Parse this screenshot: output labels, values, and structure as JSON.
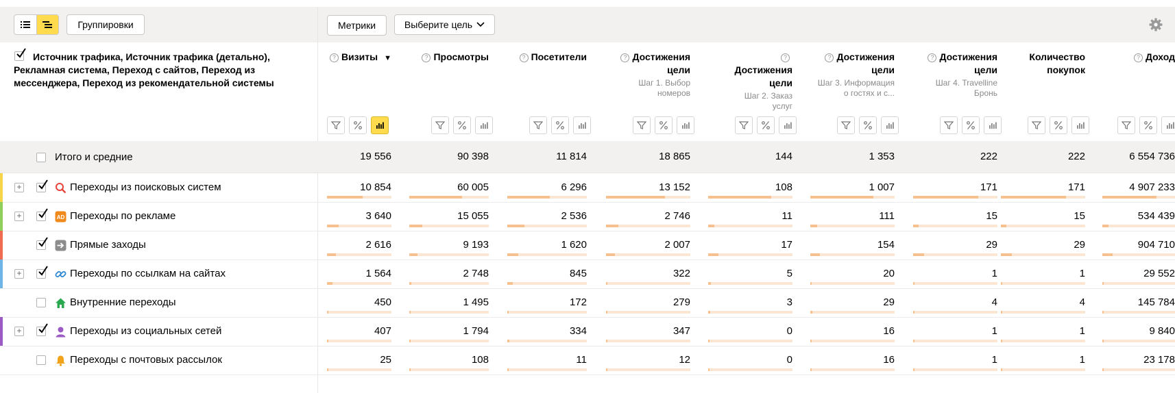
{
  "toolbar": {
    "groupings_label": "Группировки",
    "metrics_label": "Метрики",
    "goal_select_label": "Выберите цель"
  },
  "grouping_header": "Источник трафика, Источник трафика (детально), Рекламная система, Переход с сайтов, Переход из мессенджера, Переход из рекомендательной системы",
  "columns": [
    {
      "title": "Визиты",
      "sort_marker": "▼",
      "help": true,
      "note": ""
    },
    {
      "title": "Просмотры",
      "help": true,
      "note": ""
    },
    {
      "title": "Посетители",
      "help": true,
      "note": ""
    },
    {
      "title": "Достижения цели",
      "help": true,
      "note": "Шаг 1. Выбор номеров"
    },
    {
      "title": "Достижения цели",
      "help": true,
      "note": "Шаг 2. Заказ услуг"
    },
    {
      "title": "Достижения цели",
      "help": true,
      "note": "Шаг 3. Информация о гостях и с..."
    },
    {
      "title": "Достижения цели",
      "help": true,
      "note": "Шаг 4. Travelline Бронь"
    },
    {
      "title": "Количество покупок",
      "help": false,
      "note": ""
    },
    {
      "title": "Доход",
      "help": true,
      "note": ""
    }
  ],
  "totals": {
    "label": "Итого и средние",
    "values": [
      "19 556",
      "90 398",
      "11 814",
      "18 865",
      "144",
      "1 353",
      "222",
      "222",
      "6 554 736"
    ]
  },
  "rows": [
    {
      "label": "Переходы из поисковых систем",
      "icon": "search-icon",
      "expandable": true,
      "checked": true,
      "stripe": "#f7d548",
      "values": [
        "10 854",
        "60 005",
        "6 296",
        "13 152",
        "108",
        "1 007",
        "171",
        "171",
        "4 907 233"
      ],
      "bars": [
        0.555,
        0.664,
        0.533,
        0.697,
        0.75,
        0.744,
        0.77,
        0.77,
        0.749
      ]
    },
    {
      "label": "Переходы по рекламе",
      "icon": "ad-icon",
      "expandable": true,
      "checked": true,
      "stripe": "#8fcf5b",
      "values": [
        "3 640",
        "15 055",
        "2 536",
        "2 746",
        "11",
        "111",
        "15",
        "15",
        "534 439"
      ],
      "bars": [
        0.186,
        0.167,
        0.215,
        0.146,
        0.076,
        0.082,
        0.068,
        0.068,
        0.082
      ]
    },
    {
      "label": "Прямые заходы",
      "icon": "arrow-right-icon",
      "expandable": false,
      "checked": true,
      "stripe": "#f06b4f",
      "values": [
        "2 616",
        "9 193",
        "1 620",
        "2 007",
        "17",
        "154",
        "29",
        "29",
        "904 710"
      ],
      "bars": [
        0.134,
        0.102,
        0.137,
        0.106,
        0.118,
        0.114,
        0.131,
        0.131,
        0.138
      ]
    },
    {
      "label": "Переходы по ссылкам на сайтах",
      "icon": "link-icon",
      "expandable": true,
      "checked": true,
      "stripe": "#6fb5e8",
      "values": [
        "1 564",
        "2 748",
        "845",
        "322",
        "5",
        "20",
        "1",
        "1",
        "29 552"
      ],
      "bars": [
        0.08,
        0.03,
        0.072,
        0.017,
        0.035,
        0.015,
        0.005,
        0.005,
        0.005
      ]
    },
    {
      "label": "Внутренние переходы",
      "icon": "home-icon",
      "expandable": false,
      "checked": false,
      "stripe": "",
      "values": [
        "450",
        "1 495",
        "172",
        "279",
        "3",
        "29",
        "4",
        "4",
        "145 784"
      ],
      "bars": [
        0.023,
        0.017,
        0.015,
        0.015,
        0.021,
        0.021,
        0.018,
        0.018,
        0.022
      ]
    },
    {
      "label": "Переходы из социальных сетей",
      "icon": "social-icon",
      "expandable": true,
      "checked": true,
      "stripe": "#9b5ac4",
      "values": [
        "407",
        "1 794",
        "334",
        "347",
        "0",
        "16",
        "1",
        "1",
        "9 840"
      ],
      "bars": [
        0.021,
        0.02,
        0.028,
        0.018,
        0,
        0.012,
        0.005,
        0.005,
        0.002
      ]
    },
    {
      "label": "Переходы с почтовых рассылок",
      "icon": "bell-icon",
      "expandable": false,
      "checked": false,
      "stripe": "",
      "values": [
        "25",
        "108",
        "11",
        "12",
        "0",
        "16",
        "1",
        "1",
        "23 178"
      ],
      "bars": [
        0.002,
        0.002,
        0.002,
        0.001,
        0,
        0.012,
        0.005,
        0.005,
        0.004
      ]
    }
  ],
  "colors": {
    "accent": "#ffdb4d",
    "bar_fill": "#f6c08f",
    "bar_track": "#fbe6d3",
    "toolbar_bg": "#f2f1f0"
  }
}
